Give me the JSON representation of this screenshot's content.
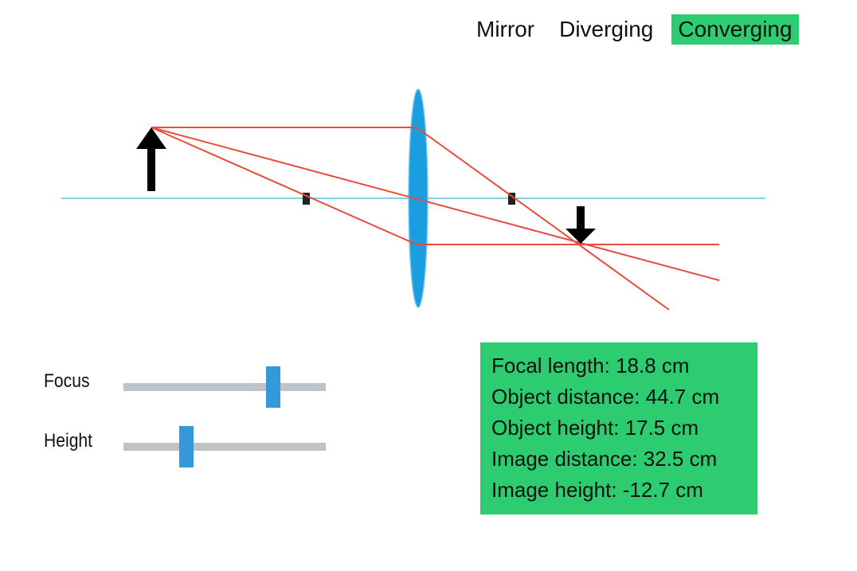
{
  "modes": [
    {
      "label": "Mirror",
      "active": false
    },
    {
      "label": "Diverging",
      "active": false
    },
    {
      "label": "Converging",
      "active": true
    }
  ],
  "colors": {
    "axis": "#5bc0de",
    "lens_fill": "#1a9ee0",
    "lens_stroke": "#7fc8ef",
    "ray": "#e74c3c",
    "arrow": "#000000",
    "panel": "#2ecc71",
    "active_tab": "#2ecc71",
    "track": "#bdc3c7",
    "thumb": "#3498db"
  },
  "diagram": {
    "units": "cm",
    "focal_length": 18.8,
    "object_distance": 44.7,
    "object_height": 17.5,
    "image_distance": 32.5,
    "image_height": -12.7
  },
  "sliders": [
    {
      "label": "Focus",
      "value_fraction": 0.74
    },
    {
      "label": "Height",
      "value_fraction": 0.31
    }
  ],
  "info": {
    "focal_length": "Focal length: 18.8 cm",
    "object_distance": "Object distance: 44.7 cm",
    "object_height": "Object height: 17.5 cm",
    "image_distance": "Image distance: 32.5 cm",
    "image_height": "Image height: -12.7 cm"
  }
}
